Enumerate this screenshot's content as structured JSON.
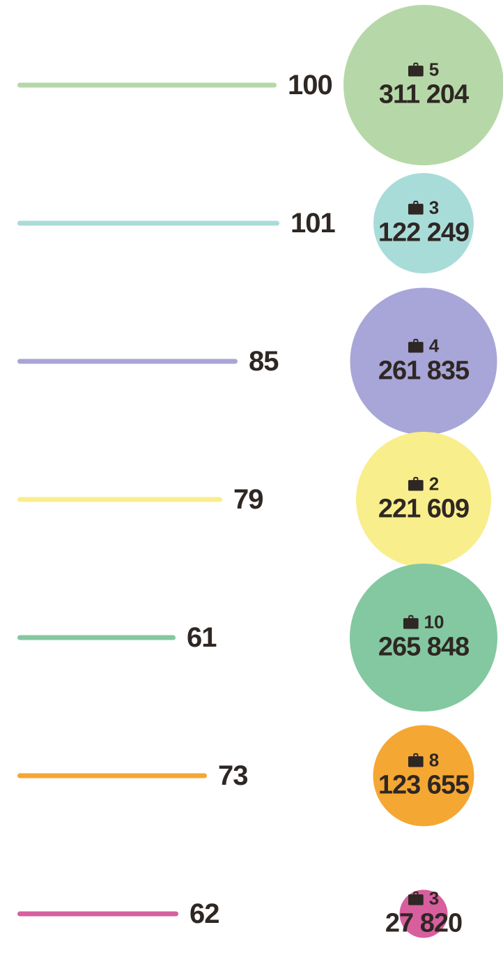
{
  "chart_data": {
    "type": "bar",
    "title": "",
    "xlabel": "",
    "ylabel": "",
    "grid": "off",
    "legend": "none",
    "background": "#ffffff",
    "text_color": "#2e2723",
    "icon": "briefcase-icon",
    "description": "Seven rows, each with a colored value line (label at line end) and a circle sized proportionally to an amount; each circle shows a briefcase count and a large amount.",
    "rows": [
      {
        "bar_value": 100,
        "count": 5,
        "amount": 311204,
        "amount_label": "311 204",
        "color": "#b6d8a8"
      },
      {
        "bar_value": 101,
        "count": 3,
        "amount": 122249,
        "amount_label": "122 249",
        "color": "#a8dcd9"
      },
      {
        "bar_value": 85,
        "count": 4,
        "amount": 261835,
        "amount_label": "261 835",
        "color": "#a8a5d8"
      },
      {
        "bar_value": 79,
        "count": 2,
        "amount": 221609,
        "amount_label": "221 609",
        "color": "#f8ee8c"
      },
      {
        "bar_value": 61,
        "count": 10,
        "amount": 265848,
        "amount_label": "265 848",
        "color": "#83c8a0"
      },
      {
        "bar_value": 73,
        "count": 8,
        "amount": 123655,
        "amount_label": "123 655",
        "color": "#f5a733"
      },
      {
        "bar_value": 62,
        "count": 3,
        "amount": 27820,
        "amount_label": "27 820",
        "color": "#d75f9e"
      }
    ],
    "series": [
      {
        "name": "line_values",
        "values": [
          100,
          101,
          85,
          79,
          61,
          73,
          62
        ]
      },
      {
        "name": "bubble_counts",
        "values": [
          5,
          3,
          4,
          2,
          10,
          8,
          3
        ]
      },
      {
        "name": "bubble_amounts",
        "values": [
          311204,
          122249,
          261835,
          221609,
          265848,
          123655,
          27820
        ]
      }
    ]
  }
}
